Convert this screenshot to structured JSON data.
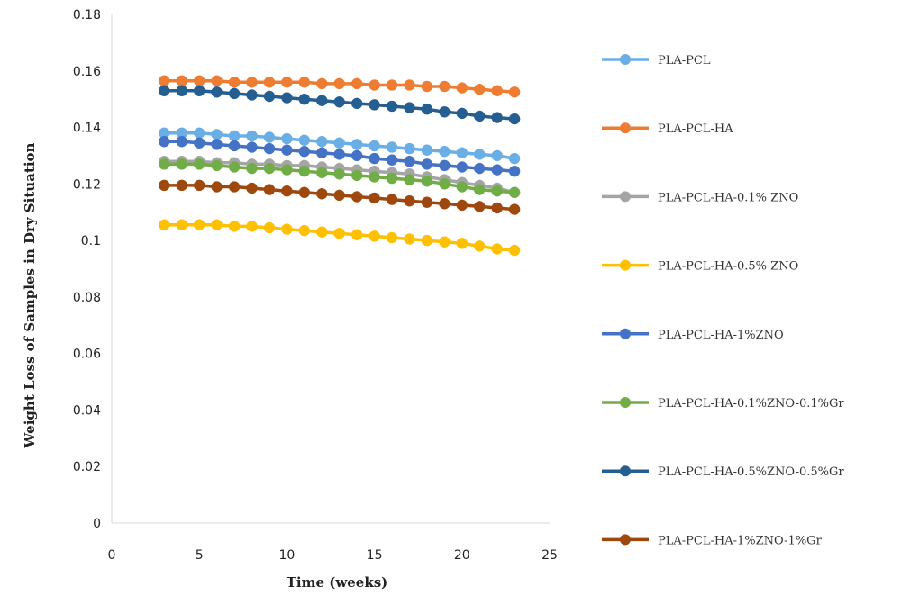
{
  "chart_data": {
    "type": "line",
    "title": "",
    "xlabel": "Time (weeks)",
    "ylabel": "Weight Loss of Samples in Dry Situation",
    "xlim": [
      0,
      25
    ],
    "ylim": [
      0,
      0.18
    ],
    "x_ticks": [
      "0",
      "5",
      "10",
      "15",
      "20",
      "25"
    ],
    "y_ticks": [
      "0",
      "0.02",
      "0.04",
      "0.06",
      "0.08",
      "0.1",
      "0.12",
      "0.14",
      "0.16",
      "0.18"
    ],
    "grid": false,
    "legend_position": "right",
    "x": [
      3,
      4,
      5,
      6,
      7,
      8,
      9,
      10,
      11,
      12,
      13,
      14,
      15,
      16,
      17,
      18,
      19,
      20,
      21,
      22,
      23
    ],
    "series": [
      {
        "name": "PLA-PCL",
        "color": "#6aaee6",
        "values": [
          0.138,
          0.138,
          0.138,
          0.1375,
          0.137,
          0.137,
          0.1365,
          0.136,
          0.1355,
          0.135,
          0.1345,
          0.134,
          0.1335,
          0.133,
          0.1325,
          0.132,
          0.1315,
          0.131,
          0.1305,
          0.13,
          0.129
        ]
      },
      {
        "name": "PLA-PCL-HA",
        "color": "#ee7d31",
        "values": [
          0.1565,
          0.1565,
          0.1565,
          0.1565,
          0.156,
          0.156,
          0.156,
          0.156,
          0.156,
          0.1555,
          0.1555,
          0.1555,
          0.155,
          0.155,
          0.155,
          0.1545,
          0.1545,
          0.154,
          0.1535,
          0.153,
          0.1525
        ]
      },
      {
        "name": "PLA-PCL-HA-0.1% ZNO",
        "color": "#a5a5a5",
        "values": [
          0.128,
          0.128,
          0.128,
          0.1275,
          0.1275,
          0.127,
          0.127,
          0.1265,
          0.1265,
          0.126,
          0.1255,
          0.125,
          0.1245,
          0.124,
          0.1235,
          0.1225,
          0.1215,
          0.1205,
          0.1195,
          0.1185,
          0.117
        ]
      },
      {
        "name": "PLA-PCL-HA-0.5% ZNO",
        "color": "#ffc000",
        "values": [
          0.1055,
          0.1055,
          0.1055,
          0.1055,
          0.105,
          0.105,
          0.1045,
          0.104,
          0.1035,
          0.103,
          0.1025,
          0.102,
          0.1015,
          0.101,
          0.1005,
          0.1,
          0.0995,
          0.099,
          0.098,
          0.097,
          0.0965
        ]
      },
      {
        "name": "PLA-PCL-HA-1%ZNO",
        "color": "#4472c4",
        "values": [
          0.135,
          0.135,
          0.1345,
          0.134,
          0.1335,
          0.133,
          0.1325,
          0.132,
          0.1315,
          0.131,
          0.1305,
          0.13,
          0.129,
          0.1285,
          0.128,
          0.127,
          0.1265,
          0.126,
          0.1255,
          0.125,
          0.1245
        ]
      },
      {
        "name": "PLA-PCL-HA-0.1%ZNO-0.1%Gr",
        "color": "#70ad47",
        "values": [
          0.127,
          0.127,
          0.127,
          0.1265,
          0.126,
          0.1255,
          0.1255,
          0.125,
          0.1245,
          0.124,
          0.1235,
          0.123,
          0.1225,
          0.122,
          0.1215,
          0.121,
          0.12,
          0.119,
          0.118,
          0.1175,
          0.117
        ]
      },
      {
        "name": "PLA-PCL-HA-0.5%ZNO-0.5%Gr",
        "color": "#255e91",
        "values": [
          0.153,
          0.153,
          0.153,
          0.1525,
          0.152,
          0.1515,
          0.151,
          0.1505,
          0.15,
          0.1495,
          0.149,
          0.1485,
          0.148,
          0.1475,
          0.147,
          0.1465,
          0.1455,
          0.145,
          0.144,
          0.1435,
          0.143
        ]
      },
      {
        "name": "PLA-PCL-HA-1%ZNO-1%Gr",
        "color": "#9e480e",
        "values": [
          0.1195,
          0.1195,
          0.1195,
          0.119,
          0.119,
          0.1185,
          0.118,
          0.1175,
          0.117,
          0.1165,
          0.116,
          0.1155,
          0.115,
          0.1145,
          0.114,
          0.1135,
          0.113,
          0.1125,
          0.112,
          0.1115,
          0.111
        ]
      }
    ]
  }
}
